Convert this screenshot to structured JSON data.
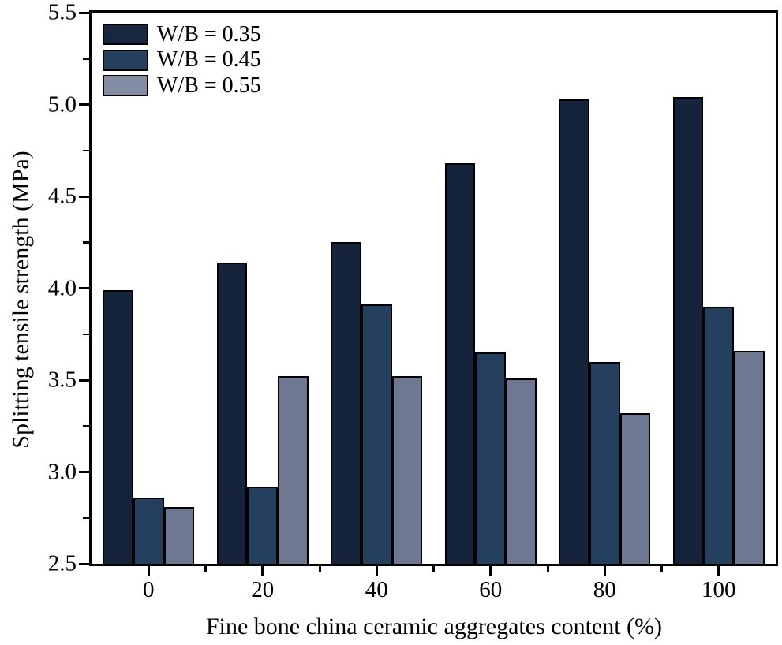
{
  "chart_data": {
    "type": "bar",
    "title": "",
    "xlabel": "Fine bone china ceramic aggregates content (%)",
    "ylabel": "Splitting tensile strength (MPa)",
    "categories": [
      0,
      20,
      40,
      60,
      80,
      100
    ],
    "series": [
      {
        "name": "W/B = 0.35",
        "color": "#16243b",
        "legend_color": "#18263f",
        "values": [
          3.99,
          4.14,
          4.25,
          4.68,
          5.03,
          5.04
        ]
      },
      {
        "name": "W/B = 0.45",
        "color": "#25405f",
        "legend_color": "#24405e",
        "values": [
          2.86,
          2.92,
          3.91,
          3.65,
          3.6,
          3.9
        ]
      },
      {
        "name": "W/B = 0.55",
        "color": "#6f7893",
        "legend_color": "#848ba4",
        "values": [
          2.81,
          3.52,
          3.52,
          3.51,
          3.32,
          3.66
        ]
      }
    ],
    "ylim": [
      2.5,
      5.5
    ],
    "y_major_tick_step": 0.5,
    "y_minor_tick_step": 0.25,
    "y_tick_labels": [
      "2.5",
      "3.0",
      "3.5",
      "4.0",
      "4.5",
      "5.0",
      "5.5"
    ],
    "x_tick_labels": [
      "0",
      "20",
      "40",
      "60",
      "80",
      "100"
    ],
    "x_axis_range": [
      -10,
      110
    ],
    "x_tick_step": 10,
    "x_label_step": 20,
    "grid": false,
    "legend_position": "top-left",
    "frame_color": "#000000",
    "background_color": "#ffffff"
  }
}
